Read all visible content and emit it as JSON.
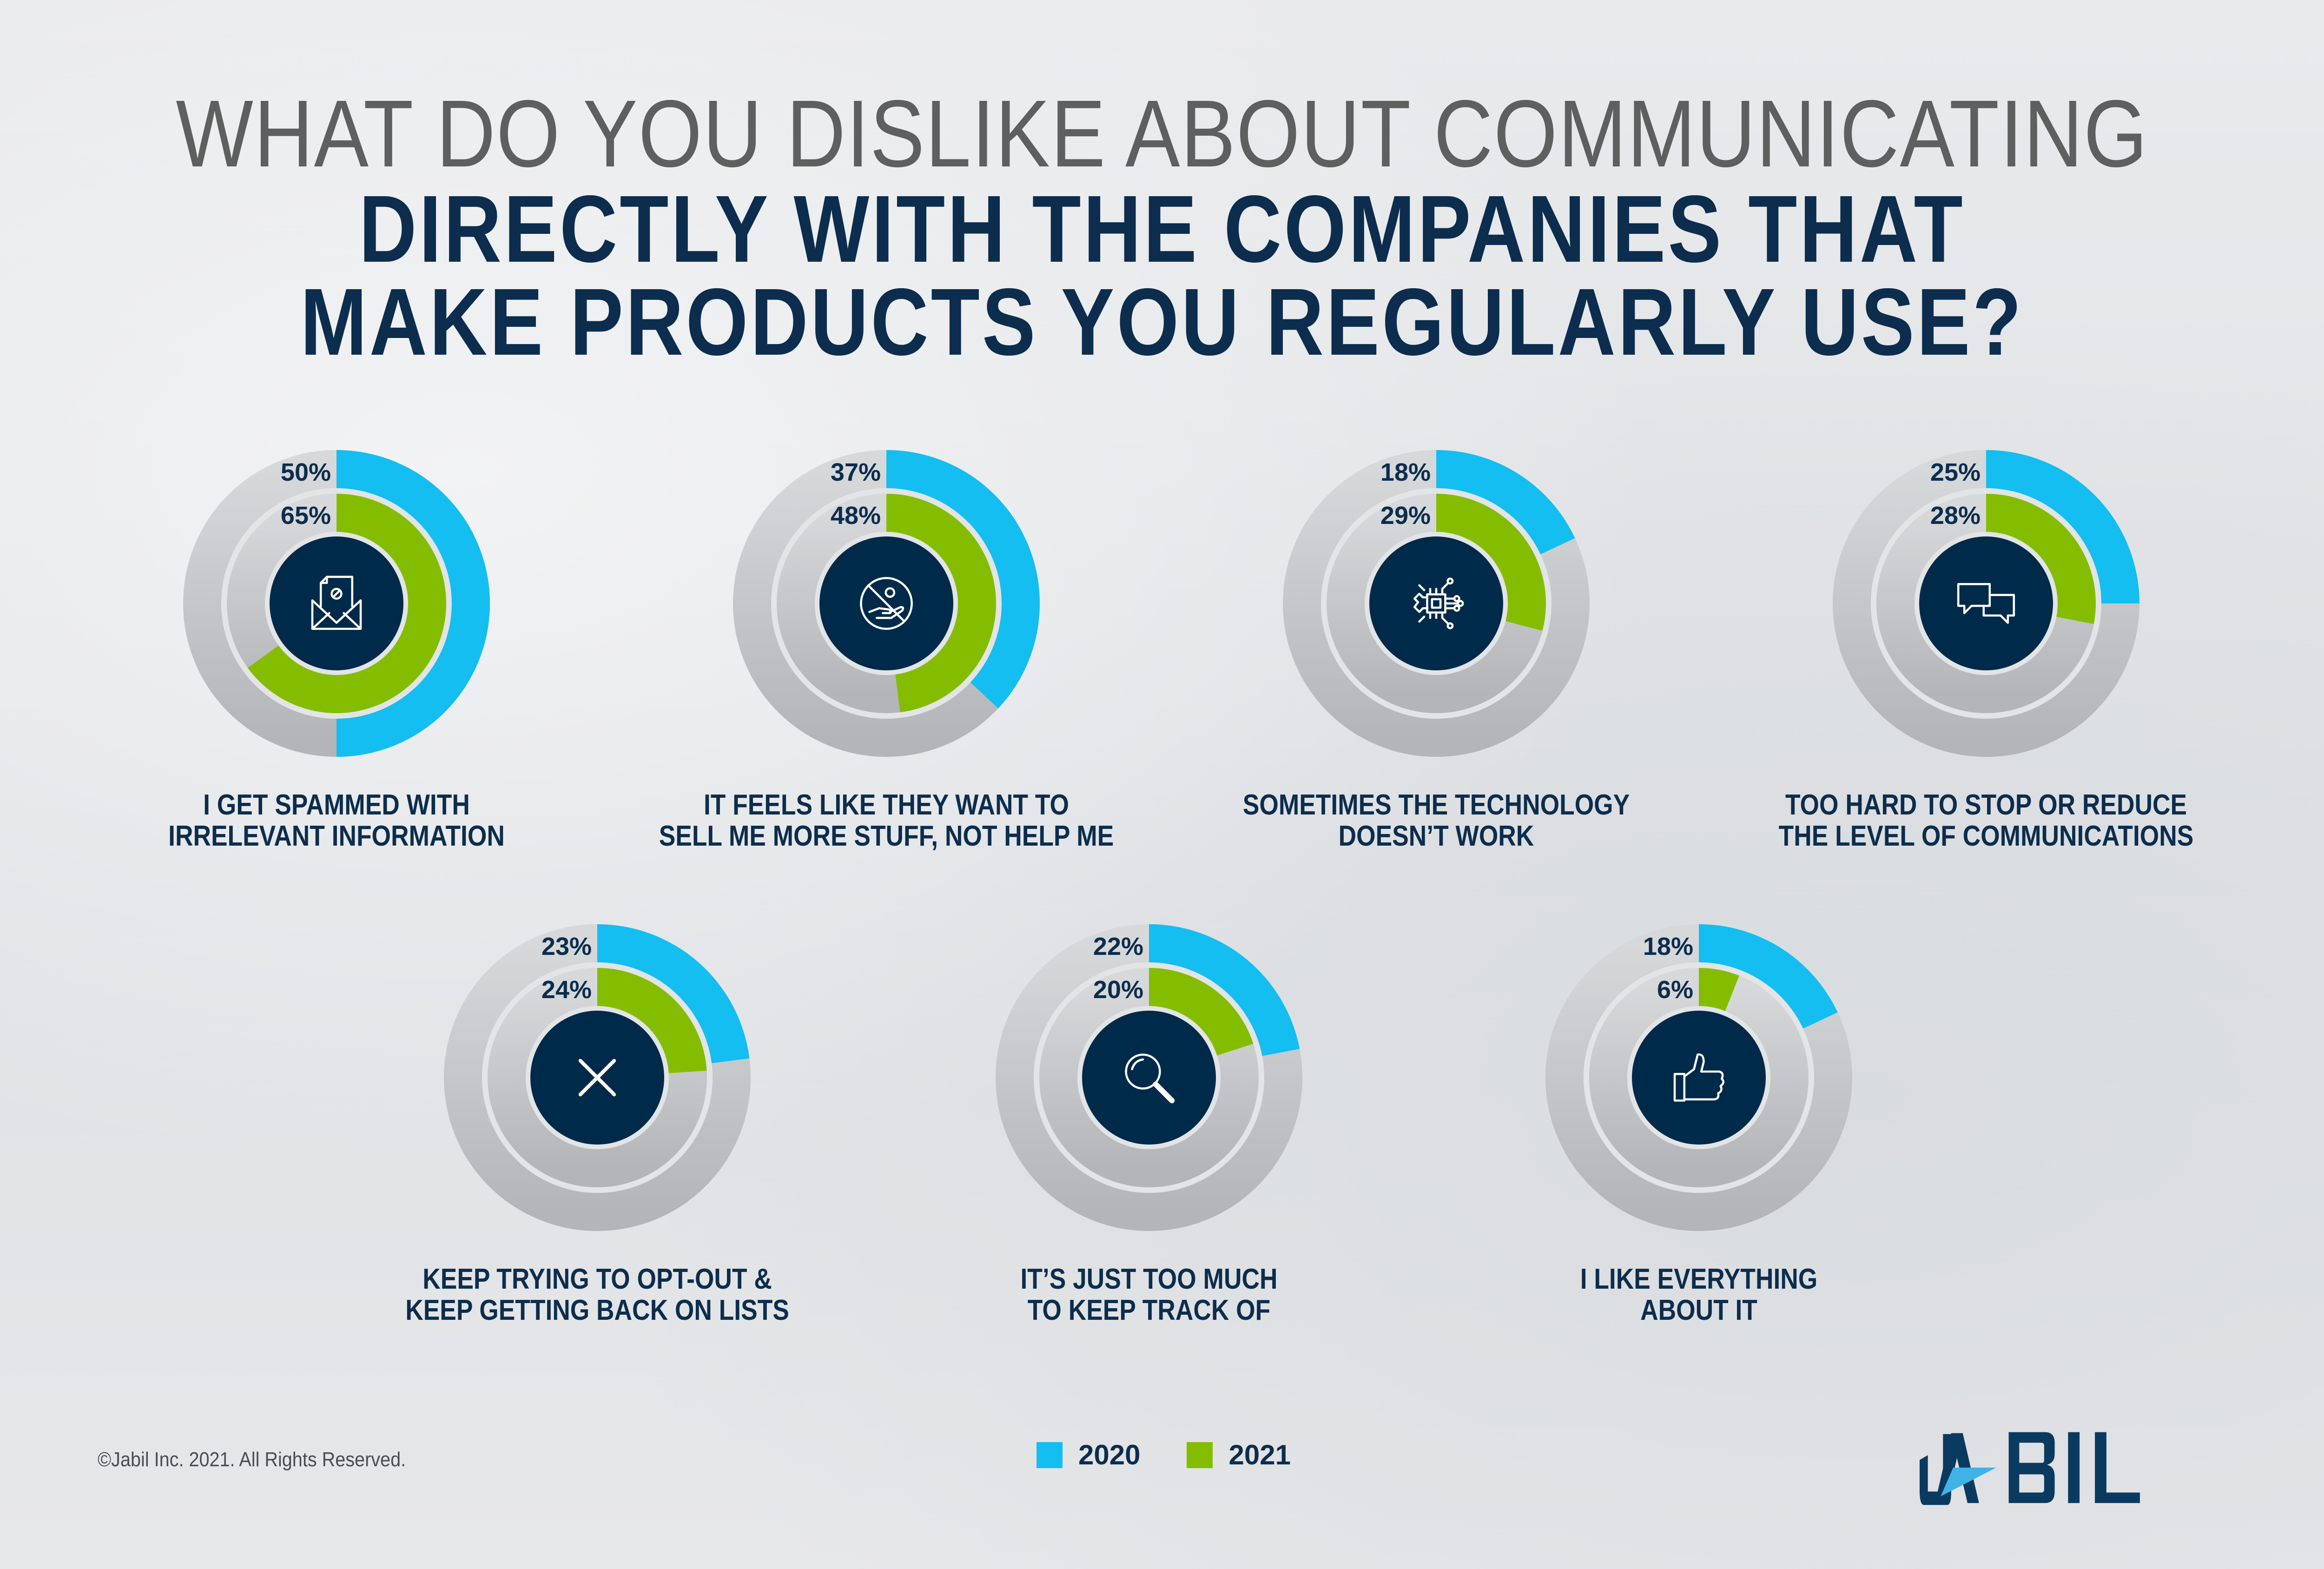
{
  "title": {
    "line1": "WHAT DO YOU DISLIKE ABOUT COMMUNICATING",
    "line2": "DIRECTLY WITH THE COMPANIES THAT",
    "line3": "MAKE PRODUCTS YOU REGULARLY USE?"
  },
  "colors": {
    "series_2020": "#14bef0",
    "series_2021": "#84bd00",
    "icon_bg": "#002a4a",
    "track": "#c5c7c9",
    "text": "#0c2d4d"
  },
  "chart_data": {
    "type": "donut",
    "title": "WHAT DO YOU DISLIKE ABOUT COMMUNICATING DIRECTLY WITH THE COMPANIES THAT MAKE PRODUCTS YOU REGULARLY USE?",
    "unit": "%",
    "legend": "bottom-center",
    "categories": [
      "I GET SPAMMED WITH\nIRRELEVANT INFORMATION",
      "IT FEELS LIKE THEY WANT TO\nSELL ME MORE STUFF, NOT HELP ME",
      "SOMETIMES THE TECHNOLOGY\nDOESN’T WORK",
      "TOO HARD TO STOP OR REDUCE\nTHE LEVEL OF COMMUNICATIONS",
      "KEEP TRYING TO OPT-OUT &\nKEEP GETTING BACK ON LISTS",
      "IT’S JUST TOO MUCH\nTO KEEP TRACK OF",
      "I LIKE EVERYTHING\nABOUT IT"
    ],
    "icons": [
      "envelope-blocked-icon",
      "no-selling-icon",
      "chip-gear-icon",
      "chat-bubbles-icon",
      "x-icon",
      "magnifier-icon",
      "thumbs-up-icon"
    ],
    "series": [
      {
        "name": "2020",
        "values": [
          50,
          37,
          18,
          25,
          23,
          22,
          18
        ]
      },
      {
        "name": "2021",
        "values": [
          65,
          48,
          29,
          28,
          24,
          20,
          6
        ]
      }
    ]
  },
  "legend": {
    "items": [
      {
        "label": "2020"
      },
      {
        "label": "2021"
      }
    ]
  },
  "footer": {
    "copyright": "©Jabil Inc. 2021. All Rights Reserved.",
    "logo_text": "JABIL"
  }
}
